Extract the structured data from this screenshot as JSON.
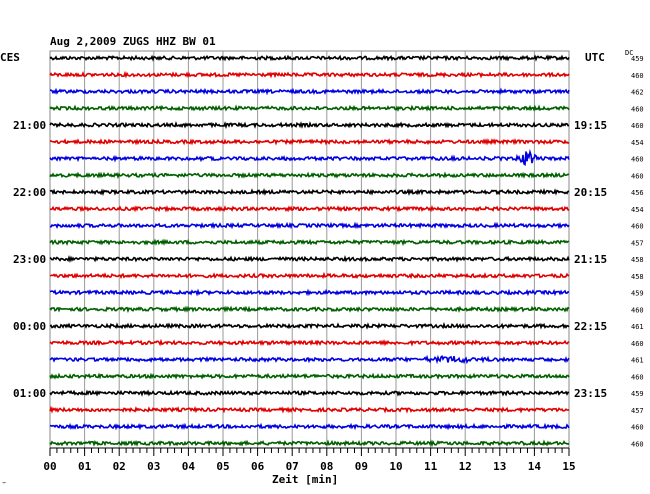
{
  "chart_data": {
    "type": "line",
    "title": "Aug 2,2009   ZUGS HHZ BW 01",
    "left_timezone": "CES",
    "right_timezone": "UTC",
    "dc_header": "DC",
    "xlabel": "Zeit [min]",
    "xlim": [
      0,
      15
    ],
    "x_ticks": [
      "00",
      "01",
      "02",
      "03",
      "04",
      "05",
      "06",
      "07",
      "08",
      "09",
      "10",
      "11",
      "12",
      "13",
      "14",
      "15"
    ],
    "trace_colors": [
      "#000000",
      "#e00000",
      "#0000e0",
      "#006000"
    ],
    "rows_per_hour": 4,
    "left_hour_labels": [
      {
        "row": 4,
        "label": "21:00"
      },
      {
        "row": 8,
        "label": "22:00"
      },
      {
        "row": 12,
        "label": "23:00"
      },
      {
        "row": 16,
        "label": "00:00"
      },
      {
        "row": 20,
        "label": "01:00"
      }
    ],
    "right_hour_labels": [
      {
        "row": 4,
        "label": "19:15"
      },
      {
        "row": 8,
        "label": "20:15"
      },
      {
        "row": 12,
        "label": "21:15"
      },
      {
        "row": 16,
        "label": "22:15"
      },
      {
        "row": 20,
        "label": "23:15"
      }
    ],
    "dc_values": [
      "459",
      "460",
      "462",
      "460",
      "460",
      "454",
      "460",
      "460",
      "456",
      "454",
      "460",
      "457",
      "458",
      "458",
      "459",
      "460",
      "461",
      "460",
      "461",
      "460",
      "459",
      "457",
      "460",
      "460"
    ],
    "events": [
      {
        "row": 6,
        "minute": 13.8,
        "amplitude": 9
      },
      {
        "row": 18,
        "minute": 11.6,
        "amplitude": 3
      }
    ],
    "corner_mark": "‴"
  }
}
